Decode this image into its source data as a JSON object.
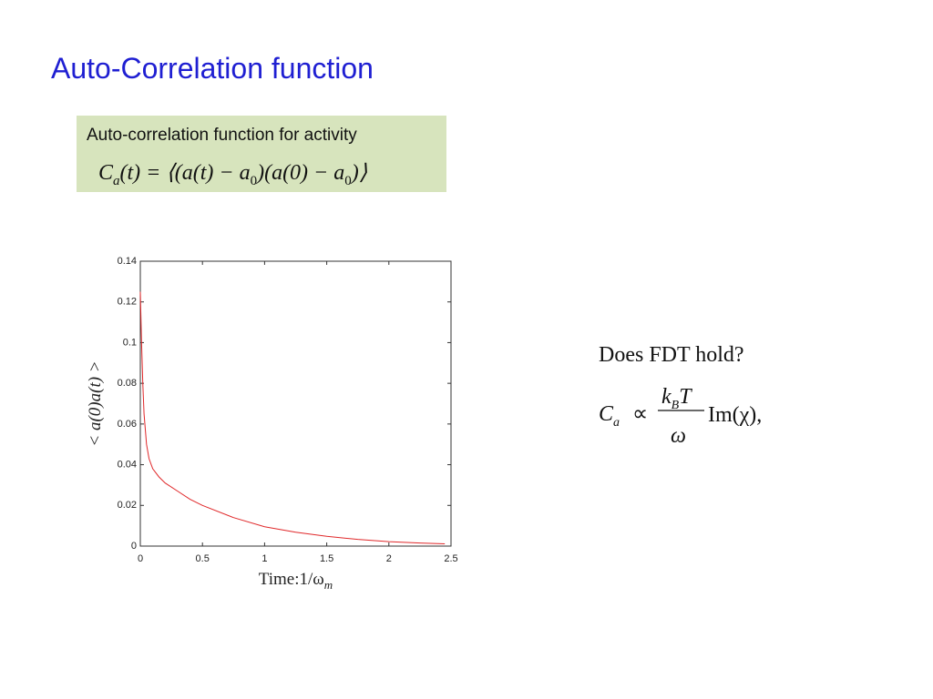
{
  "slide": {
    "title": "Auto-Correlation function",
    "box_caption": "Auto-correlation function for activity",
    "box_formula": [
      "C",
      "a",
      "(t) = ⟨(a(t) − a",
      "0",
      ")(a(0) − a",
      "0",
      ")⟩"
    ],
    "question": "Does FDT hold?",
    "fdt_formula": {
      "lhs": "C",
      "lhs_sub": "a",
      "relation": "∝",
      "num": "k",
      "num_sub": "B",
      "num_tail": "T",
      "den": "ω",
      "rhs": "Im(χ),"
    }
  },
  "chart_data": {
    "type": "line",
    "xlabel": [
      "Time:1/ω",
      "m"
    ],
    "ylabel": "< a(0)a(t) >",
    "x": [
      0,
      0.01,
      0.02,
      0.03,
      0.05,
      0.07,
      0.1,
      0.15,
      0.2,
      0.3,
      0.4,
      0.5,
      0.75,
      1,
      1.25,
      1.5,
      1.75,
      2,
      2.25,
      2.45
    ],
    "series": [
      {
        "color": "#e0282a",
        "values": [
          0.125,
          0.1,
          0.08,
          0.065,
          0.05,
          0.043,
          0.038,
          0.034,
          0.031,
          0.027,
          0.023,
          0.02,
          0.014,
          0.0095,
          0.0068,
          0.0048,
          0.0033,
          0.0022,
          0.0015,
          0.0011
        ]
      }
    ],
    "xlim": [
      0,
      2.5
    ],
    "ylim": [
      0,
      0.14
    ],
    "xticks": [
      0,
      0.5,
      1,
      1.5,
      2,
      2.5
    ],
    "yticks": [
      0,
      0.02,
      0.04,
      0.06,
      0.08,
      0.1,
      0.12,
      0.14
    ],
    "grid": false
  }
}
